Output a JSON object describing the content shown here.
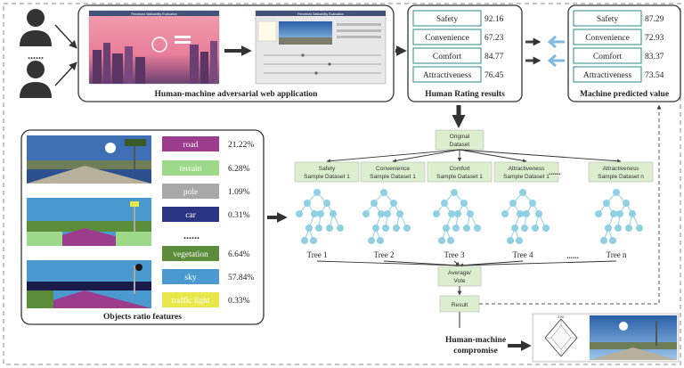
{
  "colors": {
    "box_border": "#333333",
    "score_border": "#2a8b80",
    "green_box": "#dbeecd",
    "node": "#8fd0e2",
    "arrow_dark": "#444444",
    "arrow_light": "#7fb9e0",
    "dashed": "#888888"
  },
  "web_app": {
    "label": "Human-machine adversarial web application",
    "screen1_title": "Perceived Walkability Evaluation",
    "screen2_title": "Perceived Walkability Evaluation"
  },
  "human_rating": {
    "title": "Human Rating results",
    "items": [
      {
        "label": "Safety",
        "value": "92.16"
      },
      {
        "label": "Convenience",
        "value": "67.23"
      },
      {
        "label": "Comfort",
        "value": "84.77"
      },
      {
        "label": "Attractiveness",
        "value": "76.45"
      }
    ]
  },
  "machine_predicted": {
    "title": "Machine predicted value",
    "items": [
      {
        "label": "Safety",
        "value": "87.29"
      },
      {
        "label": "Convenience",
        "value": "72.93"
      },
      {
        "label": "Comfort",
        "value": "83.37"
      },
      {
        "label": "Attractiveness",
        "value": "73.54"
      }
    ]
  },
  "objects": {
    "title": "Objects ratio features",
    "ellipsis": "......",
    "items": [
      {
        "label": "road",
        "value": "21.22%",
        "color": "#9c3c8c"
      },
      {
        "label": "terrain",
        "value": "6.28%",
        "color": "#9ed98a"
      },
      {
        "label": "pole",
        "value": "1.09%",
        "color": "#a8a8a8"
      },
      {
        "label": "car",
        "value": "0.31%",
        "color": "#2b3480"
      },
      {
        "label": "vegetation",
        "value": "6.64%",
        "color": "#5a8c3a"
      },
      {
        "label": "sky",
        "value": "57.84%",
        "color": "#4a9ad0"
      },
      {
        "label": "traffic light",
        "value": "0.33%",
        "color": "#e8e84a"
      }
    ]
  },
  "forest": {
    "original": [
      "Original",
      "Dataset"
    ],
    "samples": [
      {
        "line1": "Safety",
        "line2": "Sample Dataset 1"
      },
      {
        "line1": "Convenience",
        "line2": "Sample Dataset 1"
      },
      {
        "line1": "Comfort",
        "line2": "Sample Dataset 1"
      },
      {
        "line1": "Attractiveness",
        "line2": "Sample Dataset 1"
      },
      {
        "line1": "Attractiveness",
        "line2": "Sample Dataset n"
      }
    ],
    "dots": "......",
    "trees": [
      "Tree 1",
      "Tree 2",
      "Tree 3",
      "Tree 4",
      "Tree n"
    ],
    "vote": [
      "Average/",
      "Vote"
    ],
    "result": "Result"
  },
  "compromise": {
    "label": [
      "Human-machine",
      "compromise"
    ],
    "gauge_mark": "100"
  }
}
